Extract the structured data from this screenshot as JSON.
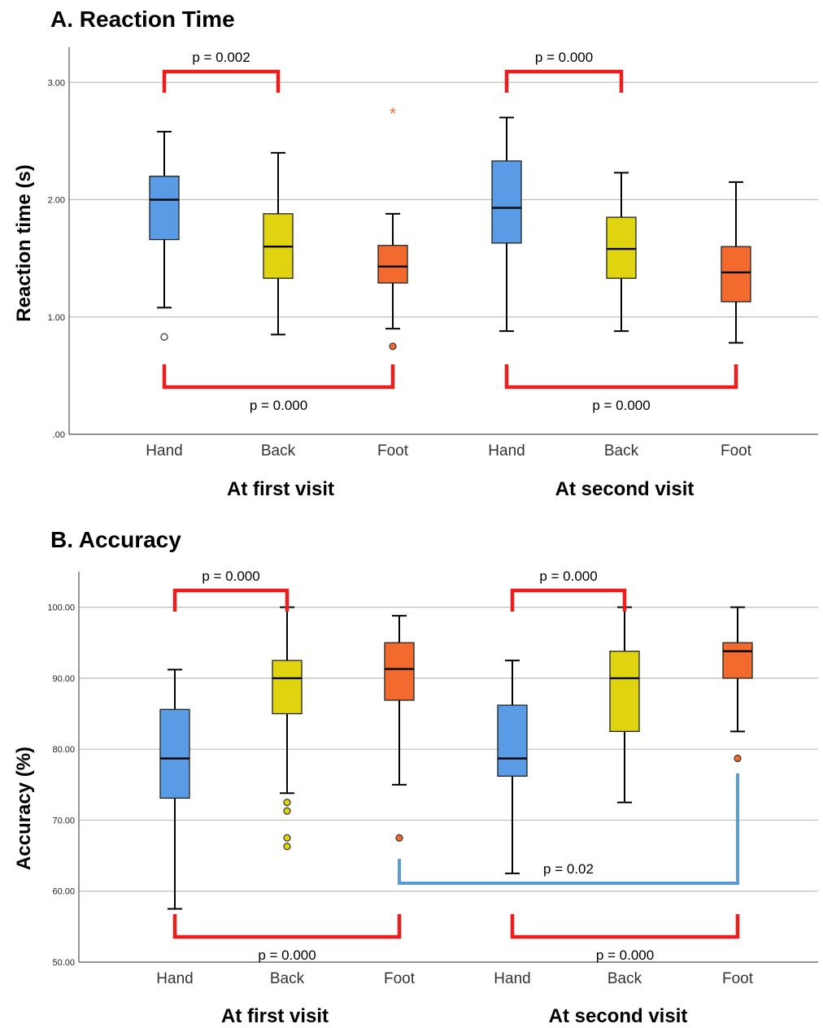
{
  "chart_data": [
    {
      "type": "box",
      "panel_title": "A. Reaction Time",
      "ylabel": "Reaction time (s)",
      "ylim": [
        0,
        3.3
      ],
      "yticks": [
        0,
        1,
        2,
        3
      ],
      "ytick_labels": [
        ".00",
        "1.00",
        "2.00",
        "3.00"
      ],
      "grid": true,
      "categories": [
        "Hand",
        "Back",
        "Foot",
        "Hand",
        "Back",
        "Foot"
      ],
      "groups": [
        "At first visit",
        "At second visit"
      ],
      "colors": [
        "#5a9be6",
        "#e0d411",
        "#f26a2e",
        "#5a9be6",
        "#e0d411",
        "#f26a2e"
      ],
      "boxes": [
        {
          "min": 1.08,
          "q1": 1.66,
          "median": 2.0,
          "q3": 2.2,
          "max": 2.58,
          "outliers": [
            0.83
          ],
          "extremes": []
        },
        {
          "min": 0.85,
          "q1": 1.33,
          "median": 1.6,
          "q3": 1.88,
          "max": 2.4,
          "outliers": [],
          "extremes": []
        },
        {
          "min": 0.9,
          "q1": 1.29,
          "median": 1.43,
          "q3": 1.61,
          "max": 1.88,
          "outliers": [
            0.75
          ],
          "extremes": [
            2.75
          ]
        },
        {
          "min": 0.88,
          "q1": 1.63,
          "median": 1.93,
          "q3": 2.33,
          "max": 2.7,
          "outliers": [],
          "extremes": []
        },
        {
          "min": 0.88,
          "q1": 1.33,
          "median": 1.58,
          "q3": 1.85,
          "max": 2.23,
          "outliers": [],
          "extremes": []
        },
        {
          "min": 0.78,
          "q1": 1.13,
          "median": 1.38,
          "q3": 1.6,
          "max": 2.15,
          "outliers": [],
          "extremes": []
        }
      ],
      "annotations": [
        {
          "text": "p = 0.002",
          "from": 0,
          "to": 1,
          "side": "top",
          "color": "#ee1c1c"
        },
        {
          "text": "p = 0.000",
          "from": 3,
          "to": 4,
          "side": "top",
          "color": "#ee1c1c"
        },
        {
          "text": "p = 0.000",
          "from": 0,
          "to": 2,
          "side": "bottom",
          "color": "#ee1c1c"
        },
        {
          "text": "p = 0.000",
          "from": 3,
          "to": 5,
          "side": "bottom",
          "color": "#ee1c1c"
        }
      ]
    },
    {
      "type": "box",
      "panel_title": "B. Accuracy",
      "ylabel": "Accuracy (%)",
      "ylim": [
        50,
        105
      ],
      "yticks": [
        50,
        60,
        70,
        80,
        90,
        100
      ],
      "ytick_labels": [
        "50.00",
        "60.00",
        "70.00",
        "80.00",
        "90.00",
        "100.00"
      ],
      "grid": true,
      "categories": [
        "Hand",
        "Back",
        "Foot",
        "Hand",
        "Back",
        "Foot"
      ],
      "groups": [
        "At first visit",
        "At second visit"
      ],
      "colors": [
        "#5a9be6",
        "#e0d411",
        "#f26a2e",
        "#5a9be6",
        "#e0d411",
        "#f26a2e"
      ],
      "boxes": [
        {
          "min": 57.5,
          "q1": 73.1,
          "median": 78.7,
          "q3": 85.6,
          "max": 91.2,
          "outliers": [],
          "extremes": []
        },
        {
          "min": 73.8,
          "q1": 85.0,
          "median": 90.0,
          "q3": 92.5,
          "max": 100.0,
          "outliers": [
            72.5,
            71.3,
            67.5,
            66.3
          ],
          "extremes": []
        },
        {
          "min": 75.0,
          "q1": 86.9,
          "median": 91.3,
          "q3": 95.0,
          "max": 98.8,
          "outliers": [
            67.5
          ],
          "extremes": []
        },
        {
          "min": 62.5,
          "q1": 76.2,
          "median": 78.7,
          "q3": 86.2,
          "max": 92.5,
          "outliers": [],
          "extremes": []
        },
        {
          "min": 72.5,
          "q1": 82.5,
          "median": 90.0,
          "q3": 93.8,
          "max": 100.0,
          "outliers": [],
          "extremes": []
        },
        {
          "min": 82.5,
          "q1": 90.0,
          "median": 93.8,
          "q3": 95.0,
          "max": 100.0,
          "outliers": [
            78.7
          ],
          "extremes": []
        }
      ],
      "annotations": [
        {
          "text": "p = 0.000",
          "from": 0,
          "to": 1,
          "side": "top",
          "color": "#ee1c1c"
        },
        {
          "text": "p = 0.000",
          "from": 3,
          "to": 4,
          "side": "top",
          "color": "#ee1c1c"
        },
        {
          "text": "p = 0.000",
          "from": 0,
          "to": 2,
          "side": "bottom",
          "color": "#ee1c1c"
        },
        {
          "text": "p = 0.000",
          "from": 3,
          "to": 5,
          "side": "bottom",
          "color": "#ee1c1c"
        },
        {
          "text": "p = 0.02",
          "from": 2,
          "to": 5,
          "side": "middle",
          "color": "#5b9bd5"
        }
      ]
    }
  ]
}
